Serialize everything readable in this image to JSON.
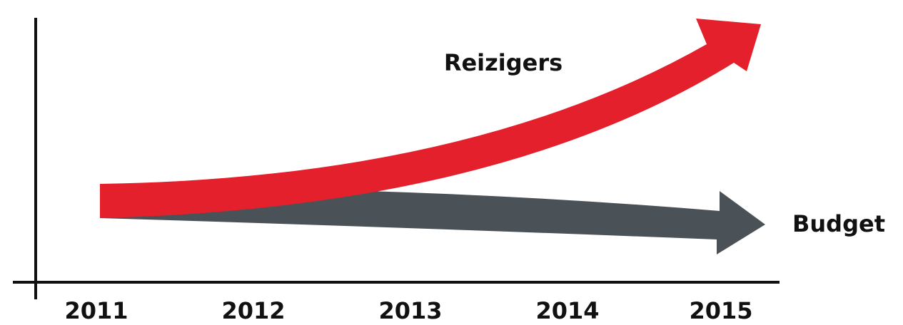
{
  "axis": {
    "labels": [
      "2011",
      "2012",
      "2013",
      "2014",
      "2015"
    ]
  },
  "arrows": [
    {
      "label": "Reizigers"
    },
    {
      "label": "Budget"
    }
  ]
}
